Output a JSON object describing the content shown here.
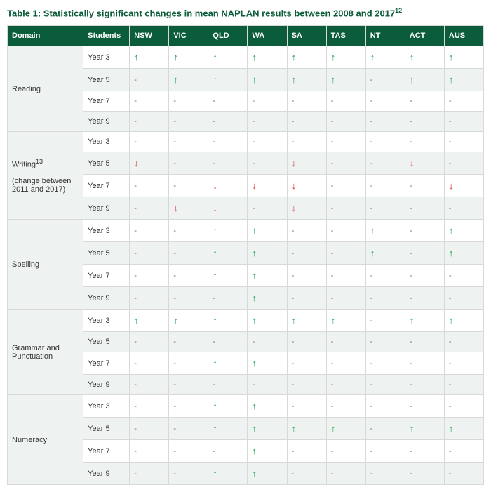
{
  "title": {
    "text": "Table 1: Statistically significant changes in mean NAPLAN results between 2008 and 2017",
    "sup": "12"
  },
  "columns": [
    "Domain",
    "Students",
    "NSW",
    "VIC",
    "QLD",
    "WA",
    "SA",
    "TAS",
    "NT",
    "ACT",
    "AUS"
  ],
  "glyphs": {
    "up": "↑",
    "down": "↓",
    "dash": "-"
  },
  "colors": {
    "header_bg": "#0a5c3a",
    "header_text": "#ffffff",
    "shade_bg": "#eef3f1",
    "border": "#d8d8d8",
    "up": "#1a9e4b",
    "down": "#d92b2b"
  },
  "domains": [
    {
      "label": "Reading",
      "rows": [
        {
          "student": "Year 3",
          "v": [
            "up",
            "up",
            "up",
            "up",
            "up",
            "up",
            "up",
            "up",
            "up"
          ]
        },
        {
          "student": "Year 5",
          "v": [
            "dash",
            "up",
            "up",
            "up",
            "up",
            "up",
            "dash",
            "up",
            "up"
          ]
        },
        {
          "student": "Year 7",
          "v": [
            "dash",
            "dash",
            "dash",
            "dash",
            "dash",
            "dash",
            "dash",
            "dash",
            "dash"
          ]
        },
        {
          "student": "Year 9",
          "v": [
            "dash",
            "dash",
            "dash",
            "dash",
            "dash",
            "dash",
            "dash",
            "dash",
            "dash"
          ]
        }
      ]
    },
    {
      "label": "Writing",
      "label_sup": "13",
      "label_note": "(change between 2011 and 2017)",
      "rows": [
        {
          "student": "Year 3",
          "v": [
            "dash",
            "dash",
            "dash",
            "dash",
            "dash",
            "dash",
            "dash",
            "dash",
            "dash"
          ]
        },
        {
          "student": "Year 5",
          "v": [
            "down",
            "dash",
            "dash",
            "dash",
            "down",
            "dash",
            "dash",
            "down",
            "dash"
          ]
        },
        {
          "student": "Year 7",
          "v": [
            "dash",
            "dash",
            "down",
            "down",
            "down",
            "dash",
            "dash",
            "dash",
            "down"
          ]
        },
        {
          "student": "Year 9",
          "v": [
            "dash",
            "down",
            "down",
            "dash",
            "down",
            "dash",
            "dash",
            "dash",
            "dash"
          ]
        }
      ]
    },
    {
      "label": "Spelling",
      "rows": [
        {
          "student": "Year 3",
          "v": [
            "dash",
            "dash",
            "up",
            "up",
            "dash",
            "dash",
            "up",
            "dash",
            "up"
          ]
        },
        {
          "student": "Year 5",
          "v": [
            "dash",
            "dash",
            "up",
            "up",
            "dash",
            "dash",
            "up",
            "dash",
            "up"
          ]
        },
        {
          "student": "Year 7",
          "v": [
            "dash",
            "dash",
            "up",
            "up",
            "dash",
            "dash",
            "dash",
            "dash",
            "dash"
          ]
        },
        {
          "student": "Year 9",
          "v": [
            "dash",
            "dash",
            "dash",
            "up",
            "dash",
            "dash",
            "dash",
            "dash",
            "dash"
          ]
        }
      ]
    },
    {
      "label": "Grammar and Punctuation",
      "rows": [
        {
          "student": "Year 3",
          "v": [
            "up",
            "up",
            "up",
            "up",
            "up",
            "up",
            "dash",
            "up",
            "up"
          ]
        },
        {
          "student": "Year 5",
          "v": [
            "dash",
            "dash",
            "dash",
            "dash",
            "dash",
            "dash",
            "dash",
            "dash",
            "dash"
          ]
        },
        {
          "student": "Year 7",
          "v": [
            "dash",
            "dash",
            "up",
            "up",
            "dash",
            "dash",
            "dash",
            "dash",
            "dash"
          ]
        },
        {
          "student": "Year 9",
          "v": [
            "dash",
            "dash",
            "dash",
            "dash",
            "dash",
            "dash",
            "dash",
            "dash",
            "dash"
          ]
        }
      ]
    },
    {
      "label": "Numeracy",
      "rows": [
        {
          "student": "Year 3",
          "v": [
            "dash",
            "dash",
            "up",
            "up",
            "dash",
            "dash",
            "dash",
            "dash",
            "dash"
          ]
        },
        {
          "student": "Year 5",
          "v": [
            "dash",
            "dash",
            "up",
            "up",
            "up",
            "up",
            "dash",
            "up",
            "up"
          ]
        },
        {
          "student": "Year 7",
          "v": [
            "dash",
            "dash",
            "dash",
            "up",
            "dash",
            "dash",
            "dash",
            "dash",
            "dash"
          ]
        },
        {
          "student": "Year 9",
          "v": [
            "dash",
            "dash",
            "up",
            "up",
            "dash",
            "dash",
            "dash",
            "dash",
            "dash"
          ]
        }
      ]
    }
  ]
}
